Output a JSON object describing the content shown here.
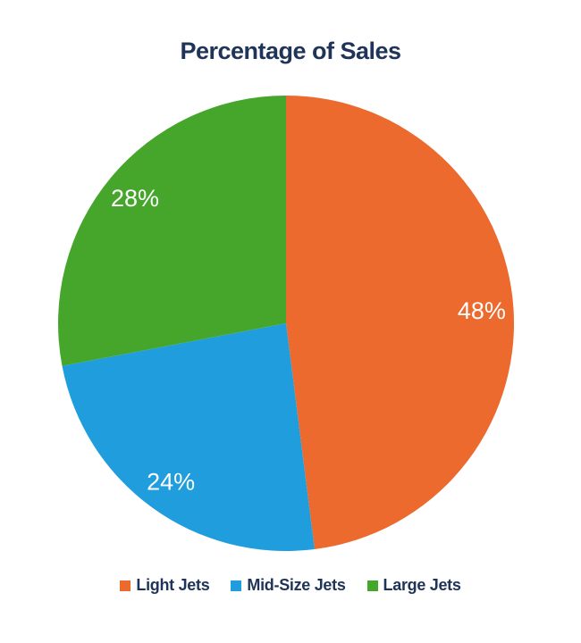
{
  "chart_data": {
    "type": "pie",
    "title": "Percentage of Sales",
    "slices": [
      {
        "label": "Light Jets",
        "value": 48,
        "display": "48%",
        "color": "#EC6A2D"
      },
      {
        "label": "Mid-Size Jets",
        "value": 24,
        "display": "24%",
        "color": "#1F9DDD"
      },
      {
        "label": "Large Jets",
        "value": 28,
        "display": "28%",
        "color": "#46A62B"
      }
    ],
    "start_angle_deg": 0,
    "direction": "clockwise",
    "label_position": "inside-end",
    "legend_position": "bottom",
    "title_color": "#1F3458",
    "label_color": "#FFFFFF",
    "legend_text_color": "#1F3458",
    "background_color": "#FFFFFF"
  }
}
